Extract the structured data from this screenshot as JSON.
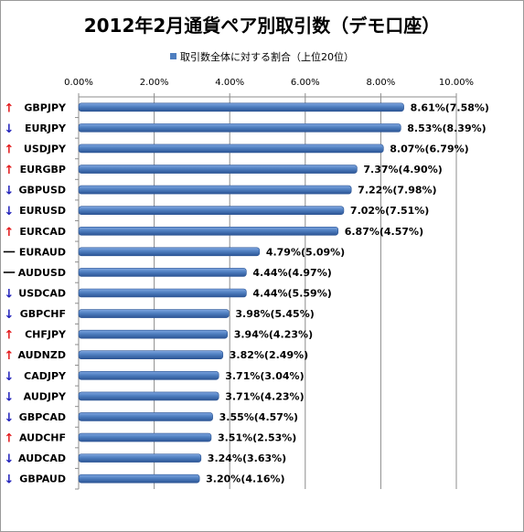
{
  "chart_data": {
    "type": "bar",
    "orientation": "horizontal",
    "title": "2012年2月通貨ペア別取引数（デモ口座）",
    "legend": "取引数全体に対する割合（上位20位）",
    "xlim": [
      0,
      10
    ],
    "x_ticks": [
      "0.00%",
      "2.00%",
      "4.00%",
      "6.00%",
      "8.00%",
      "10.00%"
    ],
    "grid": true,
    "bar_color": "#4f7fc0",
    "categories": [
      "GBPJPY",
      "EURJPY",
      "USDJPY",
      "EURGBP",
      "GBPUSD",
      "EURUSD",
      "EURCAD",
      "EURAUD",
      "AUDUSD",
      "USDCAD",
      "GBPCHF",
      "CHFJPY",
      "AUDNZD",
      "CADJPY",
      "AUDJPY",
      "GBPCAD",
      "AUDCHF",
      "AUDCAD",
      "GBPAUD"
    ],
    "values": [
      8.61,
      8.53,
      8.07,
      7.37,
      7.22,
      7.02,
      6.87,
      4.79,
      4.44,
      4.44,
      3.98,
      3.94,
      3.82,
      3.71,
      3.71,
      3.55,
      3.51,
      3.24,
      3.2
    ],
    "labels": [
      "8.61%(7.58%)",
      "8.53%(8.39%)",
      "8.07%(6.79%)",
      "7.37%(4.90%)",
      "7.22%(7.98%)",
      "7.02%(7.51%)",
      "6.87%(4.57%)",
      "4.79%(5.09%)",
      "4.44%(4.97%)",
      "4.44%(5.59%)",
      "3.98%(5.45%)",
      "3.94%(4.23%)",
      "3.82%(2.49%)",
      "3.71%(3.04%)",
      "3.71%(4.23%)",
      "3.55%(4.57%)",
      "3.51%(2.53%)",
      "3.24%(3.63%)",
      "3.20%(4.16%)"
    ],
    "trends": [
      "↑",
      "↓",
      "↑",
      "↑",
      "↓",
      "↓",
      "↑",
      "一",
      "一",
      "↓",
      "↓",
      "↑",
      "↑",
      "↓",
      "↓",
      "↓",
      "↑",
      "↓",
      "↓"
    ],
    "trend_colors": {
      "↑": "#e31a1c",
      "↓": "#2222bb",
      "一": "#000000"
    }
  }
}
